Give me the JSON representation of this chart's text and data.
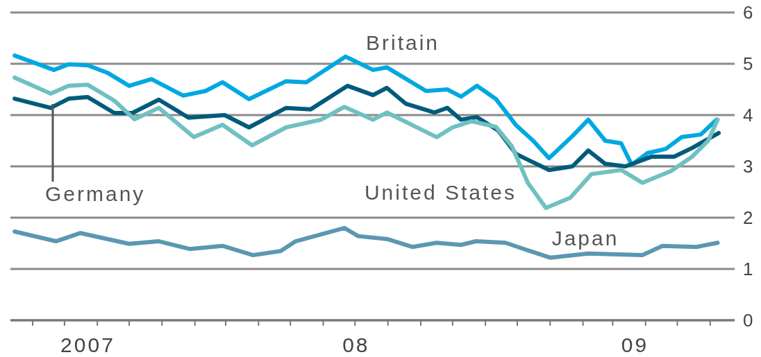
{
  "chart_data": {
    "type": "line",
    "xlim": [
      "2007-08-11",
      "2009-06-24"
    ],
    "ylim": [
      0,
      6
    ],
    "yticks": [
      0,
      1,
      2,
      3,
      4,
      5,
      6
    ],
    "grid": "y",
    "xticks": [
      {
        "value": "2007-09-01",
        "label": null
      },
      {
        "value": "2007-10-01",
        "label": null
      },
      {
        "value": "2007-10-23",
        "label": "2007"
      },
      {
        "value": "2007-11-01",
        "label": null
      },
      {
        "value": "2007-12-01",
        "label": null
      },
      {
        "value": "2008-01-01",
        "label": null
      },
      {
        "value": "2008-02-01",
        "label": null
      },
      {
        "value": "2008-03-01",
        "label": null
      },
      {
        "value": "2008-04-01",
        "label": null
      },
      {
        "value": "2008-05-01",
        "label": null
      },
      {
        "value": "2008-06-01",
        "label": null
      },
      {
        "value": "2008-07-01",
        "label": null
      },
      {
        "value": "2008-07-02",
        "label": "08"
      },
      {
        "value": "2008-08-01",
        "label": null
      },
      {
        "value": "2008-09-01",
        "label": null
      },
      {
        "value": "2008-10-01",
        "label": null
      },
      {
        "value": "2008-11-01",
        "label": null
      },
      {
        "value": "2008-12-01",
        "label": null
      },
      {
        "value": "2009-01-01",
        "label": null
      },
      {
        "value": "2009-02-01",
        "label": null
      },
      {
        "value": "2009-03-01",
        "label": null
      },
      {
        "value": "2009-03-22",
        "label": "09"
      },
      {
        "value": "2009-04-01",
        "label": null
      },
      {
        "value": "2009-05-01",
        "label": null
      },
      {
        "value": "2009-06-01",
        "label": null
      }
    ],
    "series": [
      {
        "name": "Britain",
        "color": "#00a8e1",
        "x": [
          "2007-08-15",
          "2007-09-21",
          "2007-10-05",
          "2007-10-23",
          "2007-11-11",
          "2007-12-01",
          "2007-12-22",
          "2008-01-21",
          "2008-02-11",
          "2008-02-27",
          "2008-03-23",
          "2008-04-27",
          "2008-05-16",
          "2008-06-22",
          "2008-07-18",
          "2008-07-31",
          "2008-09-06",
          "2008-09-26",
          "2008-10-09",
          "2008-10-24",
          "2008-11-11",
          "2008-11-30",
          "2008-12-16",
          "2008-12-31",
          "2009-01-22",
          "2009-02-06",
          "2009-02-22",
          "2009-03-09",
          "2009-03-19",
          "2009-04-03",
          "2009-04-20",
          "2009-05-05",
          "2009-05-23",
          "2009-06-07"
        ],
        "values": [
          5.16,
          4.88,
          4.99,
          4.97,
          4.82,
          4.57,
          4.7,
          4.38,
          4.47,
          4.64,
          4.31,
          4.66,
          4.64,
          5.14,
          4.88,
          4.93,
          4.47,
          4.5,
          4.36,
          4.57,
          4.31,
          3.8,
          3.5,
          3.16,
          3.59,
          3.91,
          3.5,
          3.45,
          3.03,
          3.26,
          3.34,
          3.57,
          3.62,
          3.91
        ]
      },
      {
        "name": "Germany",
        "color": "#005b7a",
        "x": [
          "2007-08-15",
          "2007-09-18",
          "2007-10-05",
          "2007-10-23",
          "2007-11-17",
          "2007-12-04",
          "2007-12-29",
          "2008-01-26",
          "2008-02-29",
          "2008-03-23",
          "2008-04-27",
          "2008-05-20",
          "2008-06-24",
          "2008-07-18",
          "2008-07-31",
          "2008-08-18",
          "2008-09-14",
          "2008-09-26",
          "2008-10-09",
          "2008-10-24",
          "2008-11-13",
          "2008-11-30",
          "2008-12-16",
          "2008-12-31",
          "2009-01-22",
          "2009-02-06",
          "2009-02-22",
          "2009-03-13",
          "2009-04-07",
          "2009-04-28",
          "2009-05-15",
          "2009-06-09"
        ],
        "values": [
          4.32,
          4.14,
          4.32,
          4.35,
          4.04,
          4.04,
          4.3,
          3.95,
          4.0,
          3.76,
          4.14,
          4.11,
          4.57,
          4.39,
          4.53,
          4.22,
          4.05,
          4.14,
          3.91,
          3.96,
          3.7,
          3.24,
          3.08,
          2.93,
          3.0,
          3.31,
          3.05,
          3.0,
          3.19,
          3.19,
          3.36,
          3.65
        ]
      },
      {
        "name": "United States",
        "color": "#70c0c2",
        "x": [
          "2007-08-15",
          "2007-09-18",
          "2007-10-05",
          "2007-10-23",
          "2007-11-17",
          "2007-12-06",
          "2007-12-29",
          "2008-01-31",
          "2008-02-27",
          "2008-03-26",
          "2008-04-27",
          "2008-05-30",
          "2008-06-21",
          "2008-07-18",
          "2008-07-31",
          "2008-09-16",
          "2008-10-01",
          "2008-10-19",
          "2008-11-11",
          "2008-11-26",
          "2008-12-11",
          "2008-12-28",
          "2009-01-20",
          "2009-02-09",
          "2009-03-09",
          "2009-03-29",
          "2009-04-25",
          "2009-05-15",
          "2009-05-30",
          "2009-06-08"
        ],
        "values": [
          4.73,
          4.42,
          4.57,
          4.59,
          4.28,
          3.92,
          4.14,
          3.57,
          3.81,
          3.41,
          3.76,
          3.91,
          4.16,
          3.91,
          4.05,
          3.57,
          3.76,
          3.88,
          3.77,
          3.39,
          2.68,
          2.19,
          2.39,
          2.85,
          2.93,
          2.68,
          2.91,
          3.19,
          3.5,
          3.91
        ]
      },
      {
        "name": "Japan",
        "color": "#5b97b2",
        "x": [
          "2007-08-15",
          "2007-09-23",
          "2007-10-16",
          "2007-12-01",
          "2007-12-29",
          "2008-01-27",
          "2008-02-27",
          "2008-03-27",
          "2008-04-22",
          "2008-05-06",
          "2008-06-21",
          "2008-07-04",
          "2008-08-01",
          "2008-08-24",
          "2008-09-16",
          "2008-10-09",
          "2008-10-23",
          "2008-11-20",
          "2008-12-13",
          "2009-01-01",
          "2009-02-06",
          "2009-03-29",
          "2009-04-17",
          "2009-05-19",
          "2009-06-08"
        ],
        "values": [
          1.73,
          1.54,
          1.7,
          1.49,
          1.54,
          1.39,
          1.45,
          1.27,
          1.35,
          1.54,
          1.8,
          1.64,
          1.58,
          1.43,
          1.51,
          1.47,
          1.54,
          1.51,
          1.35,
          1.22,
          1.3,
          1.27,
          1.45,
          1.43,
          1.51
        ]
      }
    ]
  }
}
